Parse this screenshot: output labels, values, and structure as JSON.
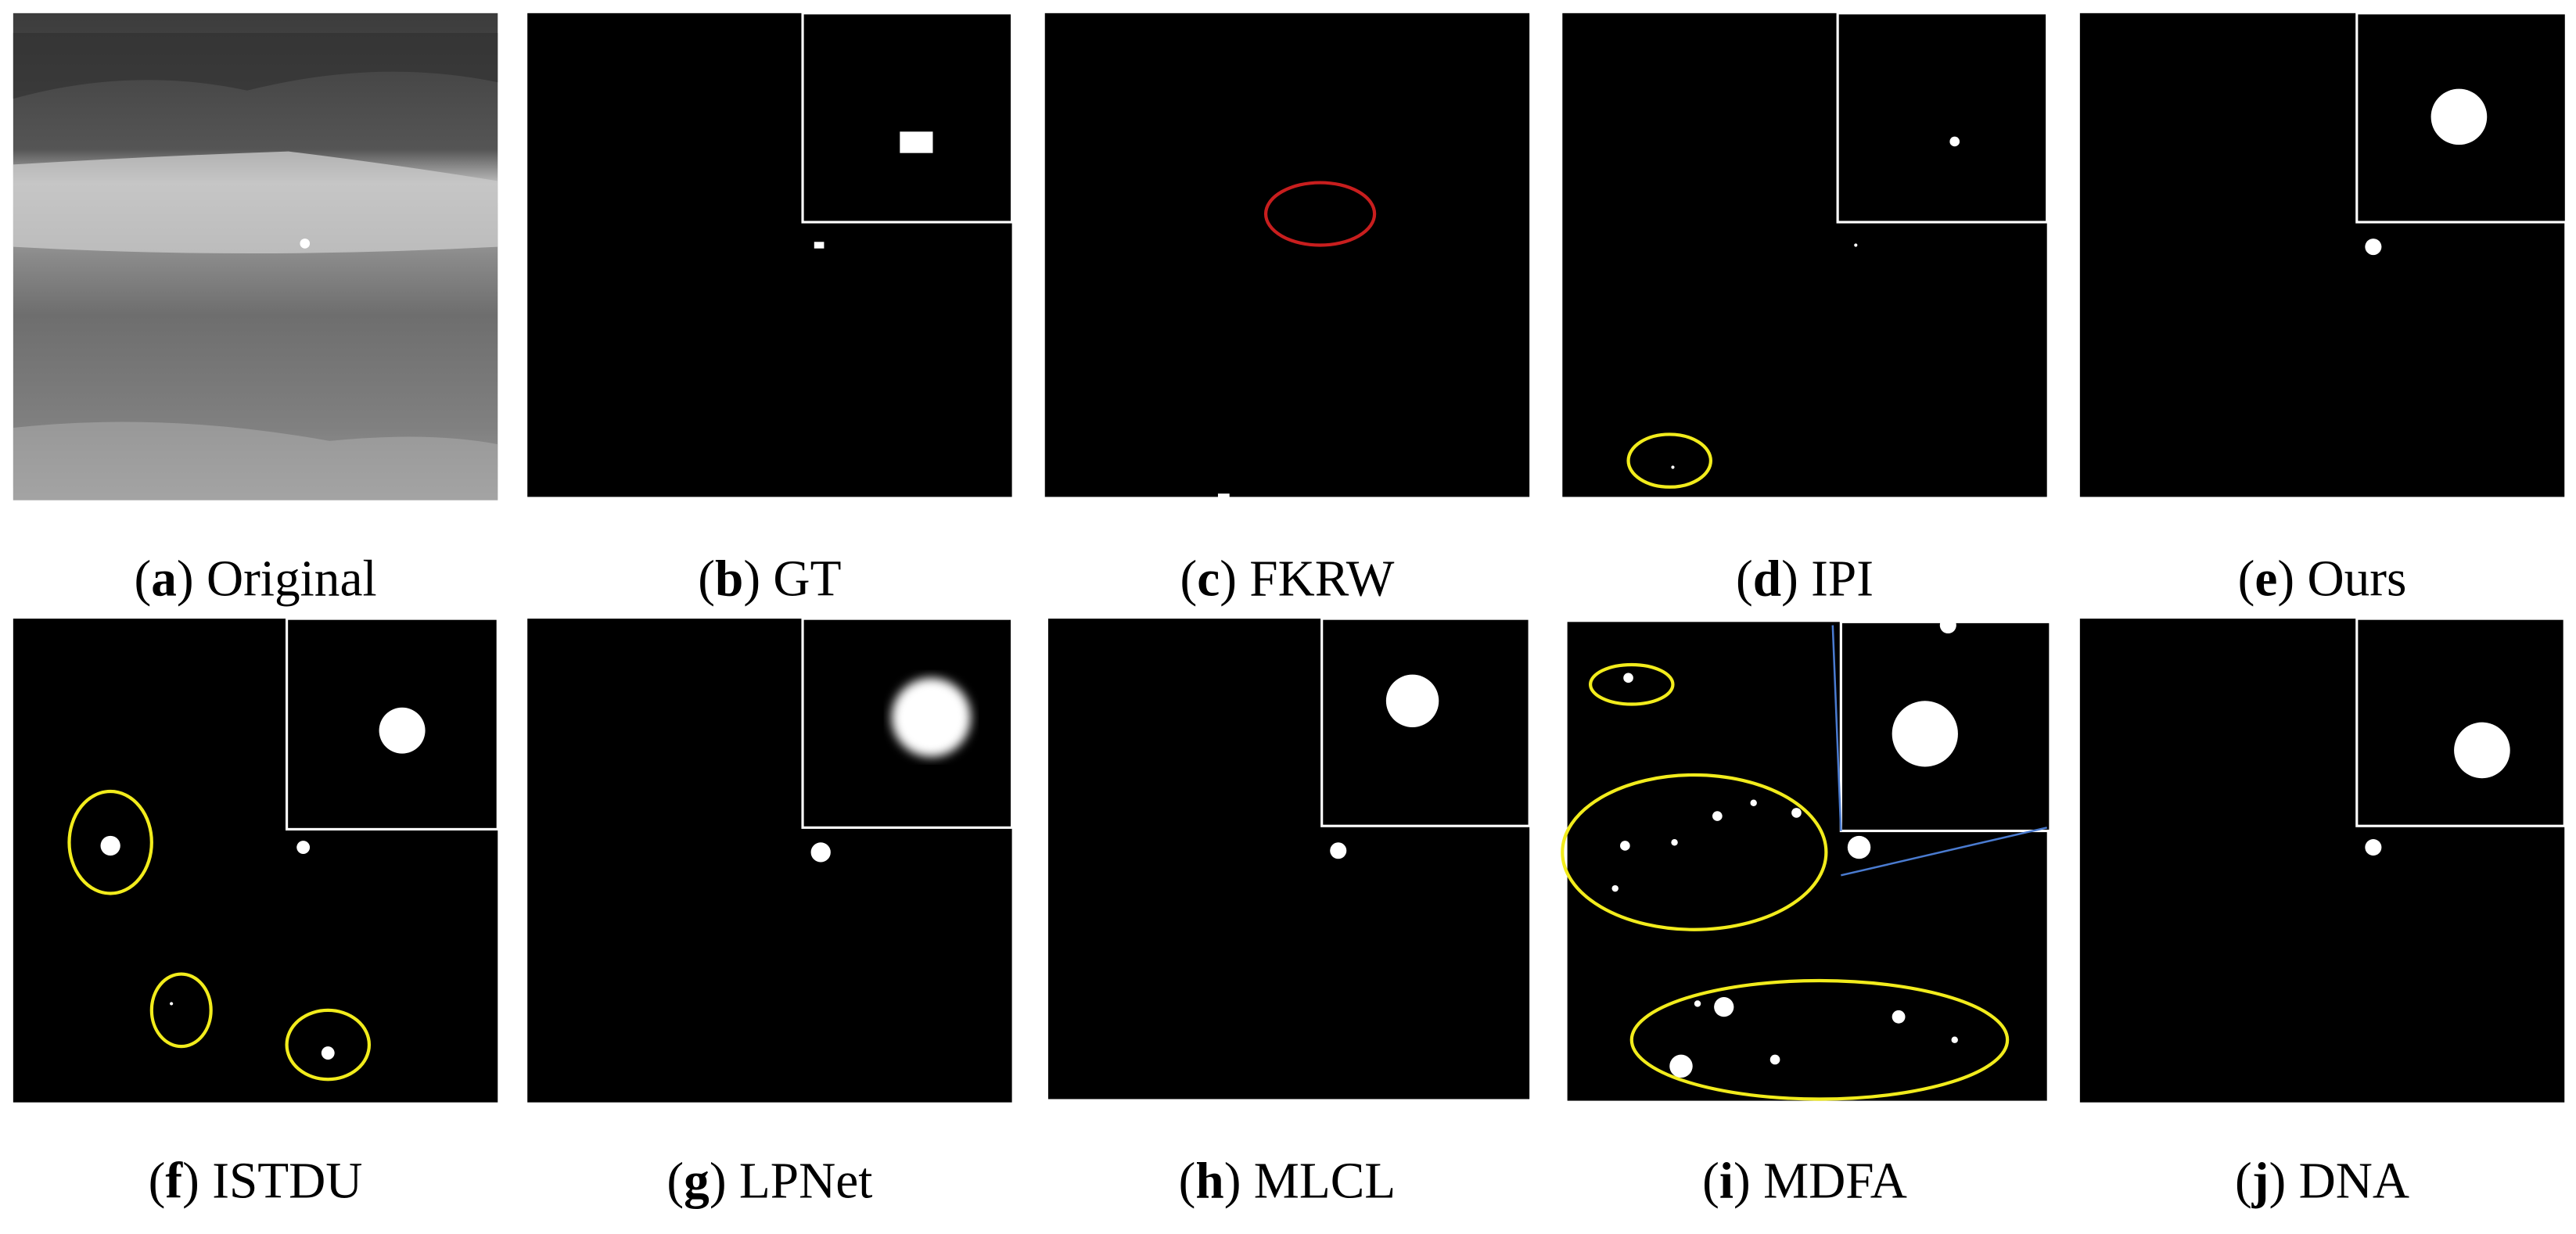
{
  "panels": [
    {
      "caption_parts": [
        "(",
        "a",
        ") Original"
      ]
    },
    {
      "caption_parts": [
        "(",
        "b",
        ") GT"
      ]
    },
    {
      "caption_parts": [
        "(",
        "c",
        ") FKRW"
      ]
    },
    {
      "caption_parts": [
        "(",
        "d",
        ") IPI"
      ]
    },
    {
      "caption_parts": [
        "(",
        "e",
        ") Ours"
      ]
    },
    {
      "caption_parts": [
        "(",
        "f",
        ") ISTDU"
      ]
    },
    {
      "caption_parts": [
        "(",
        "g",
        ") LPNet"
      ]
    },
    {
      "caption_parts": [
        "(",
        "h",
        ") MLCL"
      ]
    },
    {
      "caption_parts": [
        "(",
        "i",
        ") MDFA"
      ]
    },
    {
      "caption_parts": [
        "(",
        "j",
        ") DNA"
      ]
    }
  ]
}
